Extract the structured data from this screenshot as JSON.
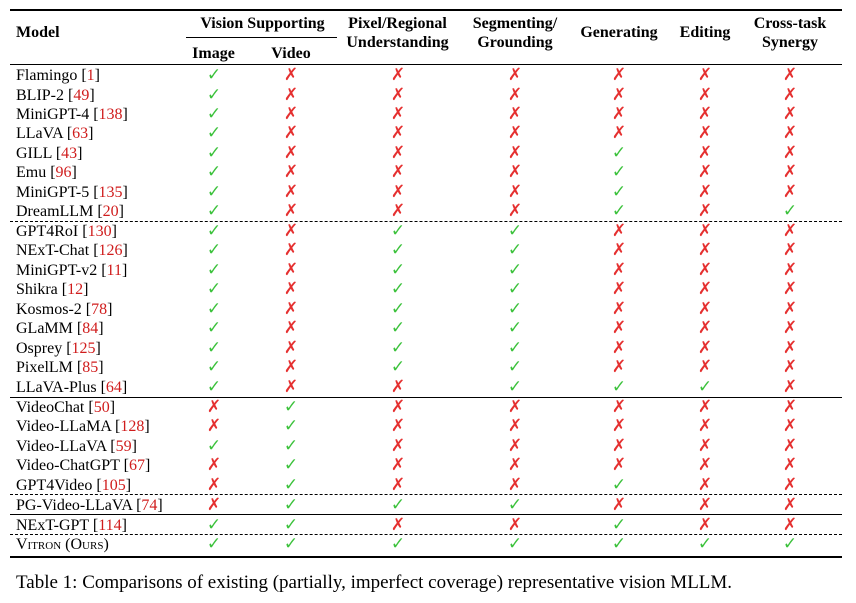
{
  "header": {
    "model": "Model",
    "vision_supporting": "Vision Supporting",
    "image": "Image",
    "video": "Video",
    "pixel_line1": "Pixel/Regional",
    "pixel_line2": "Understanding",
    "seg_line1": "Segmenting/",
    "seg_line2": "Grounding",
    "generating": "Generating",
    "editing": "Editing",
    "cross_line1": "Cross-task",
    "cross_line2": "Synergy"
  },
  "symbols": {
    "check": "✓",
    "cross": "✗"
  },
  "colors": {
    "check": "#3cc23c",
    "cross": "#e53030",
    "reference": "#d01c1c"
  },
  "rows": [
    {
      "name": "Flamingo",
      "ref": "1",
      "values": [
        1,
        0,
        0,
        0,
        0,
        0,
        0
      ]
    },
    {
      "name": "BLIP-2",
      "ref": "49",
      "values": [
        1,
        0,
        0,
        0,
        0,
        0,
        0
      ]
    },
    {
      "name": "MiniGPT-4",
      "ref": "138",
      "values": [
        1,
        0,
        0,
        0,
        0,
        0,
        0
      ]
    },
    {
      "name": "LLaVA",
      "ref": "63",
      "values": [
        1,
        0,
        0,
        0,
        0,
        0,
        0
      ]
    },
    {
      "name": "GILL",
      "ref": "43",
      "values": [
        1,
        0,
        0,
        0,
        1,
        0,
        0
      ]
    },
    {
      "name": "Emu",
      "ref": "96",
      "values": [
        1,
        0,
        0,
        0,
        1,
        0,
        0
      ]
    },
    {
      "name": "MiniGPT-5",
      "ref": "135",
      "values": [
        1,
        0,
        0,
        0,
        1,
        0,
        0
      ]
    },
    {
      "name": "DreamLLM",
      "ref": "20",
      "values": [
        1,
        0,
        0,
        0,
        1,
        0,
        1
      ]
    },
    {
      "name": "GPT4RoI",
      "ref": "130",
      "values": [
        1,
        0,
        1,
        1,
        0,
        0,
        0
      ]
    },
    {
      "name": "NExT-Chat",
      "ref": "126",
      "values": [
        1,
        0,
        1,
        1,
        0,
        0,
        0
      ]
    },
    {
      "name": "MiniGPT-v2",
      "ref": "11",
      "values": [
        1,
        0,
        1,
        1,
        0,
        0,
        0
      ]
    },
    {
      "name": "Shikra",
      "ref": "12",
      "values": [
        1,
        0,
        1,
        1,
        0,
        0,
        0
      ]
    },
    {
      "name": "Kosmos-2",
      "ref": "78",
      "values": [
        1,
        0,
        1,
        1,
        0,
        0,
        0
      ]
    },
    {
      "name": "GLaMM",
      "ref": "84",
      "values": [
        1,
        0,
        1,
        1,
        0,
        0,
        0
      ]
    },
    {
      "name": "Osprey",
      "ref": "125",
      "values": [
        1,
        0,
        1,
        1,
        0,
        0,
        0
      ]
    },
    {
      "name": "PixelLM",
      "ref": "85",
      "values": [
        1,
        0,
        1,
        1,
        0,
        0,
        0
      ]
    },
    {
      "name": "LLaVA-Plus",
      "ref": "64",
      "values": [
        1,
        0,
        0,
        1,
        1,
        1,
        0
      ]
    },
    {
      "name": "VideoChat",
      "ref": "50",
      "values": [
        0,
        1,
        0,
        0,
        0,
        0,
        0
      ]
    },
    {
      "name": "Video-LLaMA",
      "ref": "128",
      "values": [
        0,
        1,
        0,
        0,
        0,
        0,
        0
      ]
    },
    {
      "name": "Video-LLaVA",
      "ref": "59",
      "values": [
        1,
        1,
        0,
        0,
        0,
        0,
        0
      ]
    },
    {
      "name": "Video-ChatGPT",
      "ref": "67",
      "values": [
        0,
        1,
        0,
        0,
        0,
        0,
        0
      ]
    },
    {
      "name": "GPT4Video",
      "ref": "105",
      "values": [
        0,
        1,
        0,
        0,
        1,
        0,
        0
      ]
    },
    {
      "name": "PG-Video-LLaVA",
      "ref": "74",
      "values": [
        0,
        1,
        1,
        1,
        0,
        0,
        0
      ]
    },
    {
      "name": "NExT-GPT",
      "ref": "114",
      "values": [
        1,
        1,
        0,
        0,
        1,
        0,
        0
      ]
    },
    {
      "name": "Vitron (Ours)",
      "ref": "",
      "values": [
        1,
        1,
        1,
        1,
        1,
        1,
        1
      ]
    }
  ],
  "caption": "Table 1: Comparisons of existing (partially, imperfect coverage) representative vision MLLM."
}
